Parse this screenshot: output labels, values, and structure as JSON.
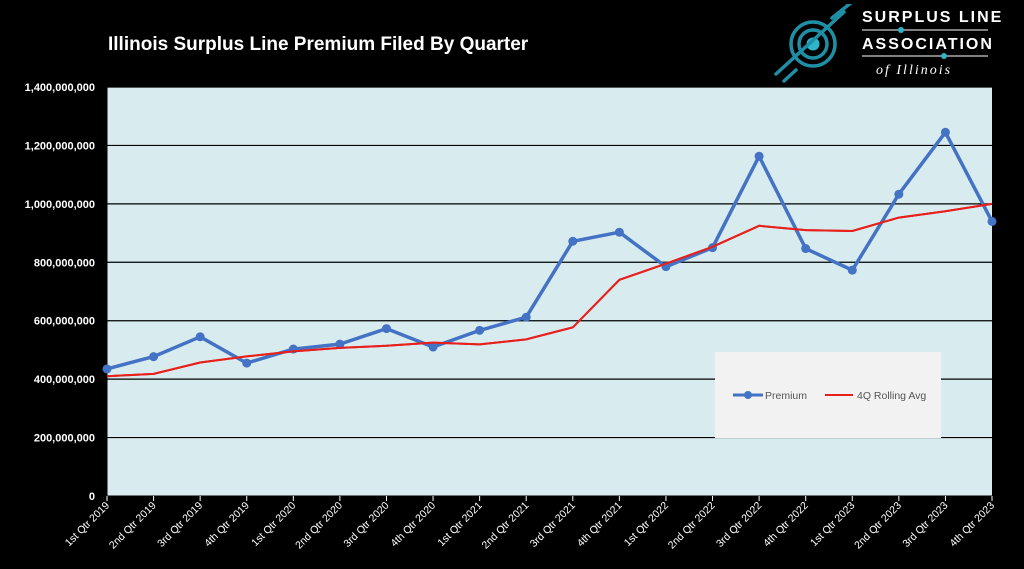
{
  "title": "Illinois Surplus Line Premium Filed By Quarter",
  "logo": {
    "line1": "SURPLUS LINE",
    "line2": "ASSOCIATION",
    "line3": "of Illinois",
    "accent_color": "#1f8fa6"
  },
  "colors": {
    "background": "#000000",
    "plot_area": "#d8ecef",
    "premium": "#4472c4",
    "rolling_avg": "#e8201c",
    "gridline": "#000000"
  },
  "chart_data": {
    "type": "line",
    "title": "Illinois Surplus Line Premium Filed By Quarter",
    "xlabel": "",
    "ylabel": "",
    "ylim": [
      0,
      1400000000
    ],
    "ytick_step": 200000000,
    "yticks": [
      "0",
      "200,000,000",
      "400,000,000",
      "600,000,000",
      "800,000,000",
      "1,000,000,000",
      "1,200,000,000",
      "1,400,000,000"
    ],
    "grid": true,
    "legend_position": "lower-right",
    "categories": [
      "1st Qtr 2019",
      "2nd Qtr 2019",
      "3rd Qtr 2019",
      "4th Qtr 2019",
      "1st Qtr 2020",
      "2nd Qtr 2020",
      "3rd Qtr 2020",
      "4th Qtr 2020",
      "1st Qtr 2021",
      "2nd Qtr 2021",
      "3rd Qtr 2021",
      "4th Qtr 2021",
      "1st Qtr 2022",
      "2nd Qtr 2022",
      "3rd Qtr 2022",
      "4th Qtr 2022",
      "1st Qtr 2023",
      "2nd Qtr 2023",
      "3rd Qtr 2023",
      "4th Qtr 2023"
    ],
    "series": [
      {
        "name": "Premium",
        "color": "#4472c4",
        "markers": true,
        "values": [
          435000000,
          477000000,
          545000000,
          455000000,
          503000000,
          520000000,
          573000000,
          510000000,
          567000000,
          612000000,
          872000000,
          903000000,
          785000000,
          850000000,
          1163000000,
          847000000,
          773000000,
          1033000000,
          1245000000,
          940000000
        ]
      },
      {
        "name": "4Q Rolling Avg",
        "color": "#e8201c",
        "markers": false,
        "values": [
          410000000,
          418000000,
          457000000,
          478000000,
          495000000,
          507000000,
          514000000,
          525000000,
          519000000,
          536000000,
          577000000,
          740000000,
          795000000,
          853000000,
          925000000,
          910000000,
          907000000,
          953000000,
          975000000,
          1000000000
        ]
      }
    ]
  }
}
